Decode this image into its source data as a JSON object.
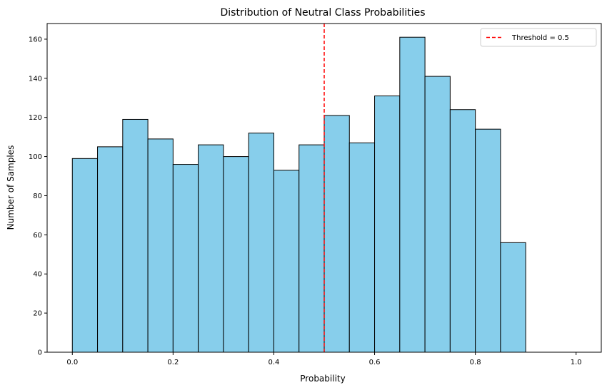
{
  "chart_data": {
    "type": "bar",
    "title": "Distribution of Neutral Class Probabilities",
    "xlabel": "Probability",
    "ylabel": "Number of Samples",
    "xlim": [
      -0.05,
      1.05
    ],
    "ylim": [
      0,
      168
    ],
    "xticks": [
      0.0,
      0.2,
      0.4,
      0.6,
      0.8,
      1.0
    ],
    "xtick_labels": [
      "0.0",
      "0.2",
      "0.4",
      "0.6",
      "0.8",
      "1.0"
    ],
    "yticks": [
      0,
      20,
      40,
      60,
      80,
      100,
      120,
      140,
      160
    ],
    "ytick_labels": [
      "0",
      "20",
      "40",
      "60",
      "80",
      "100",
      "120",
      "140",
      "160"
    ],
    "bin_edges": [
      0.0,
      0.05,
      0.1,
      0.15,
      0.2,
      0.25,
      0.3,
      0.35,
      0.4,
      0.45,
      0.5,
      0.55,
      0.6,
      0.65,
      0.7,
      0.75,
      0.8,
      0.85,
      0.9,
      0.95,
      1.0
    ],
    "counts": [
      99,
      105,
      119,
      109,
      96,
      106,
      100,
      112,
      93,
      106,
      121,
      107,
      131,
      161,
      141,
      124,
      114,
      56,
      0,
      0
    ],
    "bar_color": "#87ceeb",
    "bar_edge_color": "#000000",
    "grid": false,
    "threshold": {
      "x": 0.5,
      "label": "Threshold = 0.5",
      "color": "#ff0000",
      "style": "dashed"
    },
    "legend": {
      "placement": "top-right",
      "entries": [
        "Threshold = 0.5"
      ]
    }
  }
}
